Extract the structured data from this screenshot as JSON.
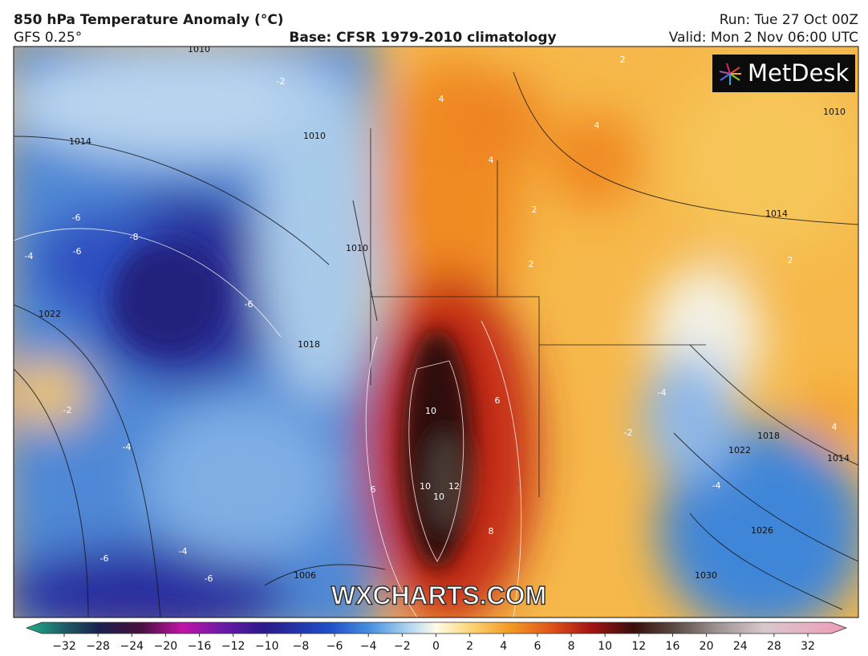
{
  "header": {
    "title": "850 hPa Temperature Anomaly (°C)",
    "model": "GFS 0.25°",
    "base": "Base: CFSR 1979-2010 climatology",
    "run": "Run: Tue 27 Oct 00Z",
    "valid": "Valid: Mon 2 Nov 06:00 UTC"
  },
  "logo": "MetDesk",
  "watermark": "WXCHARTS.COM",
  "map": {
    "isobar_labels": [
      "1010",
      "1014",
      "1010",
      "1022",
      "1018",
      "1010",
      "1010",
      "1014",
      "1018",
      "1022",
      "1014",
      "1026",
      "1030",
      "1006"
    ],
    "anomaly_labels": [
      "-2",
      "2",
      "4",
      "4",
      "-6",
      "-8",
      "-6",
      "-4",
      "-6",
      "-2",
      "10",
      "10",
      "10",
      "12",
      "6",
      "6",
      "8",
      "-4",
      "-2",
      "-4",
      "-4",
      "-6",
      "-6",
      "2",
      "2",
      "4",
      "-4",
      "4",
      "2"
    ]
  },
  "colorbar": {
    "labels": [
      "−32",
      "−28",
      "−24",
      "−20",
      "−16",
      "−12",
      "−10",
      "−8",
      "−6",
      "−4",
      "−2",
      "0",
      "2",
      "4",
      "6",
      "8",
      "10",
      "12",
      "16",
      "20",
      "24",
      "28",
      "32"
    ]
  }
}
